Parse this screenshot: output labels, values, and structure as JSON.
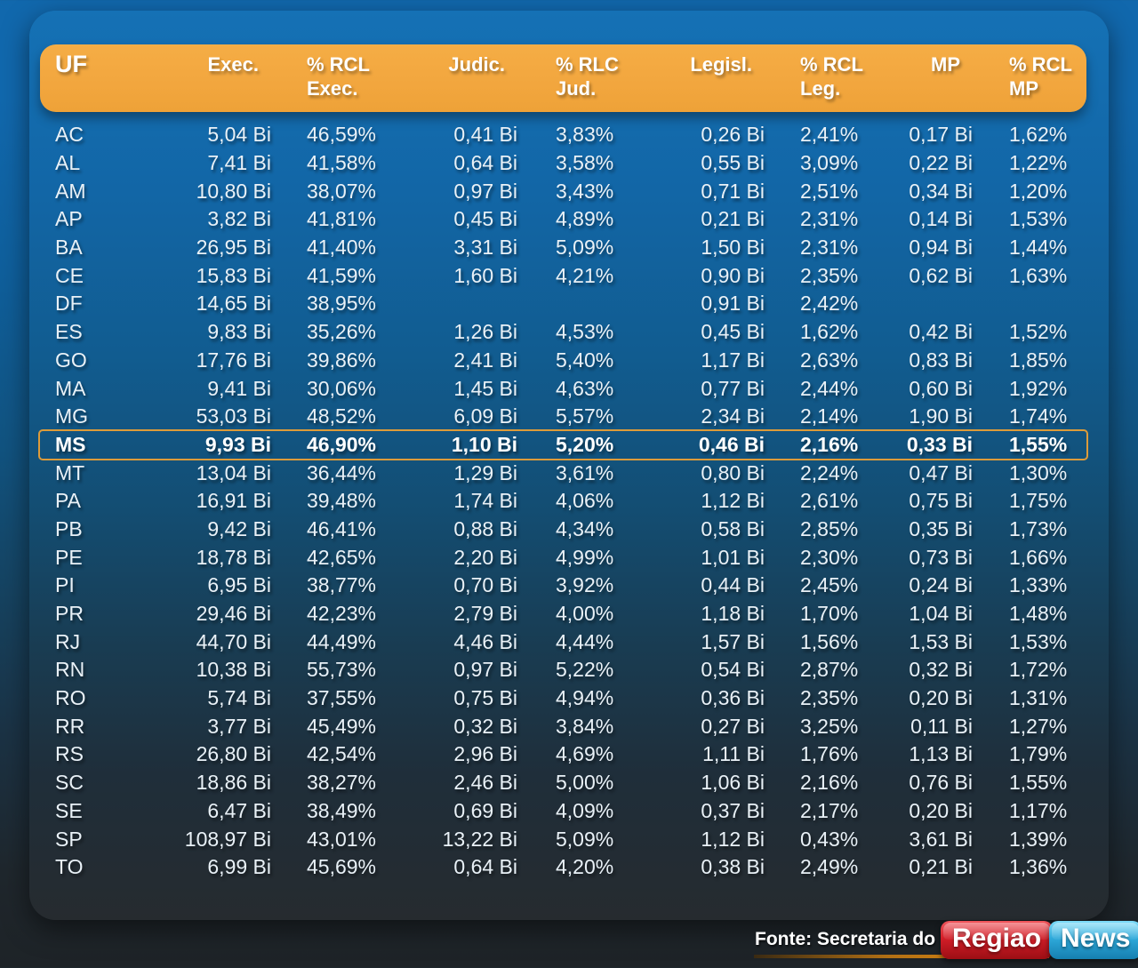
{
  "header": {
    "columns": [
      {
        "line1": "UF",
        "line2": ""
      },
      {
        "line1": "Exec.",
        "line2": ""
      },
      {
        "line1": "% RCL",
        "line2": "Exec."
      },
      {
        "line1": "Judic.",
        "line2": ""
      },
      {
        "line1": "% RLC",
        "line2": "Jud."
      },
      {
        "line1": "Legisl.",
        "line2": ""
      },
      {
        "line1": "% RCL",
        "line2": "Leg."
      },
      {
        "line1": "MP",
        "line2": ""
      },
      {
        "line1": "% RCL",
        "line2": "MP"
      }
    ]
  },
  "chart_data": {
    "type": "table",
    "columns": [
      "UF",
      "Exec.",
      "% RCL Exec.",
      "Judic.",
      "% RLC Jud.",
      "Legisl.",
      "% RCL Leg.",
      "MP",
      "% RCL MP"
    ],
    "rows": [
      [
        "AC",
        "5,04 Bi",
        "46,59%",
        "0,41 Bi",
        "3,83%",
        "0,26 Bi",
        "2,41%",
        "0,17 Bi",
        "1,62%"
      ],
      [
        "AL",
        "7,41 Bi",
        "41,58%",
        "0,64 Bi",
        "3,58%",
        "0,55 Bi",
        "3,09%",
        "0,22 Bi",
        "1,22%"
      ],
      [
        "AM",
        "10,80 Bi",
        "38,07%",
        "0,97 Bi",
        "3,43%",
        "0,71 Bi",
        "2,51%",
        "0,34 Bi",
        "1,20%"
      ],
      [
        "AP",
        "3,82 Bi",
        "41,81%",
        "0,45 Bi",
        "4,89%",
        "0,21 Bi",
        "2,31%",
        "0,14 Bi",
        "1,53%"
      ],
      [
        "BA",
        "26,95 Bi",
        "41,40%",
        "3,31 Bi",
        "5,09%",
        "1,50 Bi",
        "2,31%",
        "0,94 Bi",
        "1,44%"
      ],
      [
        "CE",
        "15,83 Bi",
        "41,59%",
        "1,60 Bi",
        "4,21%",
        "0,90 Bi",
        "2,35%",
        "0,62 Bi",
        "1,63%"
      ],
      [
        "DF",
        "14,65 Bi",
        "38,95%",
        "",
        "",
        "0,91 Bi",
        "2,42%",
        "",
        ""
      ],
      [
        "ES",
        "9,83 Bi",
        "35,26%",
        "1,26 Bi",
        "4,53%",
        "0,45 Bi",
        "1,62%",
        "0,42 Bi",
        "1,52%"
      ],
      [
        "GO",
        "17,76 Bi",
        "39,86%",
        "2,41 Bi",
        "5,40%",
        "1,17 Bi",
        "2,63%",
        "0,83 Bi",
        "1,85%"
      ],
      [
        "MA",
        "9,41 Bi",
        "30,06%",
        "1,45 Bi",
        "4,63%",
        "0,77 Bi",
        "2,44%",
        "0,60 Bi",
        "1,92%"
      ],
      [
        "MG",
        "53,03 Bi",
        "48,52%",
        "6,09 Bi",
        "5,57%",
        "2,34 Bi",
        "2,14%",
        "1,90 Bi",
        "1,74%"
      ],
      [
        "MS",
        "9,93 Bi",
        "46,90%",
        "1,10 Bi",
        "5,20%",
        "0,46 Bi",
        "2,16%",
        "0,33 Bi",
        "1,55%"
      ],
      [
        "MT",
        "13,04 Bi",
        "36,44%",
        "1,29 Bi",
        "3,61%",
        "0,80 Bi",
        "2,24%",
        "0,47 Bi",
        "1,30%"
      ],
      [
        "PA",
        "16,91 Bi",
        "39,48%",
        "1,74 Bi",
        "4,06%",
        "1,12 Bi",
        "2,61%",
        "0,75 Bi",
        "1,75%"
      ],
      [
        "PB",
        "9,42 Bi",
        "46,41%",
        "0,88 Bi",
        "4,34%",
        "0,58 Bi",
        "2,85%",
        "0,35 Bi",
        "1,73%"
      ],
      [
        "PE",
        "18,78 Bi",
        "42,65%",
        "2,20 Bi",
        "4,99%",
        "1,01 Bi",
        "2,30%",
        "0,73 Bi",
        "1,66%"
      ],
      [
        "PI",
        "6,95 Bi",
        "38,77%",
        "0,70 Bi",
        "3,92%",
        "0,44 Bi",
        "2,45%",
        "0,24 Bi",
        "1,33%"
      ],
      [
        "PR",
        "29,46 Bi",
        "42,23%",
        "2,79 Bi",
        "4,00%",
        "1,18 Bi",
        "1,70%",
        "1,04 Bi",
        "1,48%"
      ],
      [
        "RJ",
        "44,70 Bi",
        "44,49%",
        "4,46 Bi",
        "4,44%",
        "1,57 Bi",
        "1,56%",
        "1,53 Bi",
        "1,53%"
      ],
      [
        "RN",
        "10,38 Bi",
        "55,73%",
        "0,97 Bi",
        "5,22%",
        "0,54 Bi",
        "2,87%",
        "0,32 Bi",
        "1,72%"
      ],
      [
        "RO",
        "5,74 Bi",
        "37,55%",
        "0,75 Bi",
        "4,94%",
        "0,36 Bi",
        "2,35%",
        "0,20 Bi",
        "1,31%"
      ],
      [
        "RR",
        "3,77 Bi",
        "45,49%",
        "0,32 Bi",
        "3,84%",
        "0,27 Bi",
        "3,25%",
        "0,11 Bi",
        "1,27%"
      ],
      [
        "RS",
        "26,80 Bi",
        "42,54%",
        "2,96 Bi",
        "4,69%",
        "1,11 Bi",
        "1,76%",
        "1,13 Bi",
        "1,79%"
      ],
      [
        "SC",
        "18,86 Bi",
        "38,27%",
        "2,46 Bi",
        "5,00%",
        "1,06 Bi",
        "2,16%",
        "0,76 Bi",
        "1,55%"
      ],
      [
        "SE",
        "6,47 Bi",
        "38,49%",
        "0,69 Bi",
        "4,09%",
        "0,37 Bi",
        "2,17%",
        "0,20 Bi",
        "1,17%"
      ],
      [
        "SP",
        "108,97 Bi",
        "43,01%",
        "13,22 Bi",
        "5,09%",
        "1,12 Bi",
        "0,43%",
        "3,61 Bi",
        "1,39%"
      ],
      [
        "TO",
        "6,99 Bi",
        "45,69%",
        "0,64 Bi",
        "4,20%",
        "0,38 Bi",
        "2,49%",
        "0,21 Bi",
        "1,36%"
      ]
    ],
    "highlighted_row": "MS",
    "source": "Fonte: Secretaria do T"
  },
  "footer": {
    "source": "Fonte: Secretaria do T",
    "logo": {
      "part1": "Regiao",
      "part2": "News"
    }
  },
  "colors": {
    "header_orange": "#f2a63e",
    "highlight_border": "#dd9b3a",
    "background_top": "#1168ad",
    "background_bottom": "#1e2327",
    "logo_red": "#c6171f",
    "logo_blue": "#2ba6d7",
    "text": "#ffffff"
  }
}
